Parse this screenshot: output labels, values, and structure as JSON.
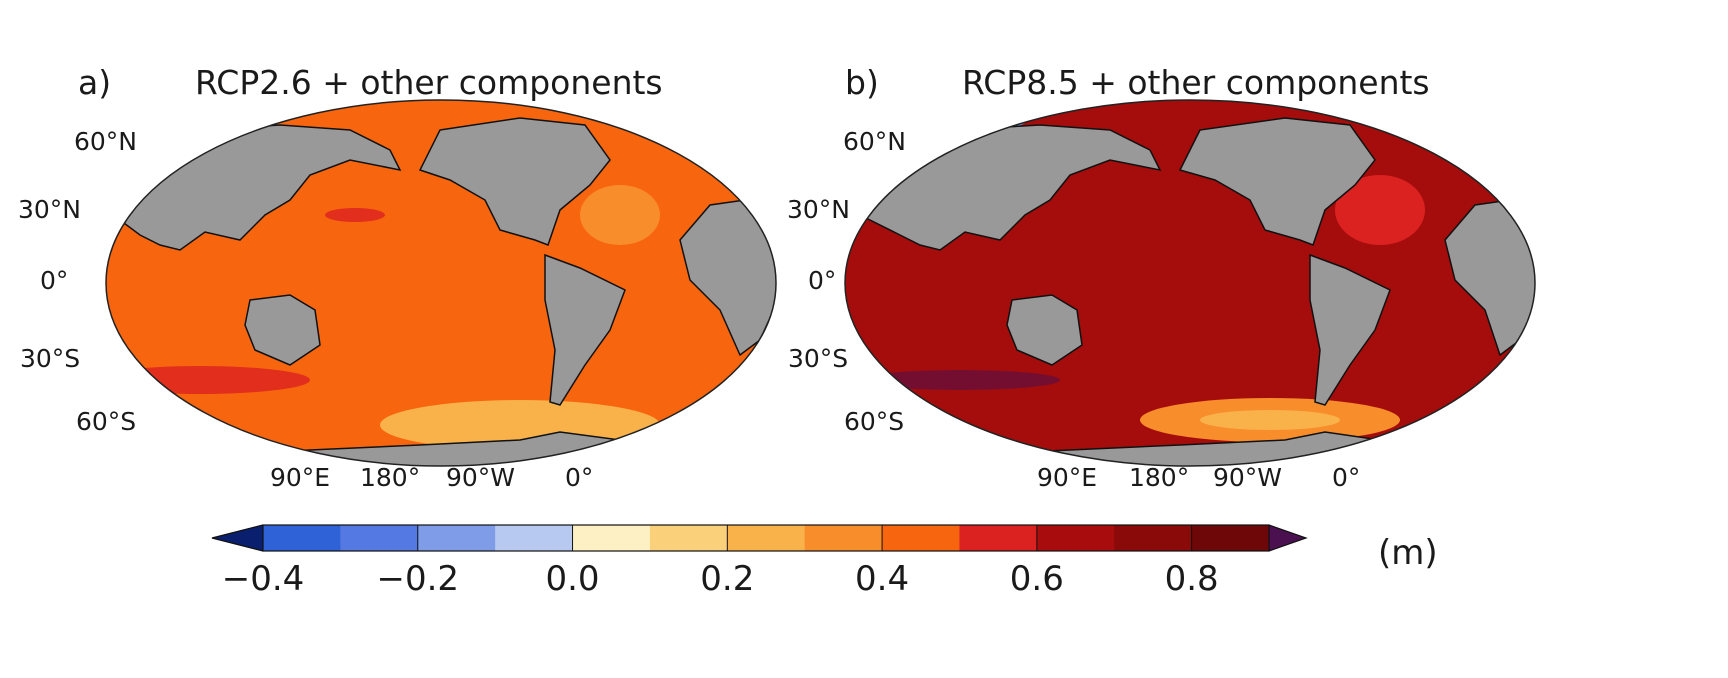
{
  "figure": {
    "panels": [
      {
        "id": "a",
        "letter": "a)",
        "title": "RCP2.6 + other components",
        "ocean_color": "#f7650f",
        "lat_labels": [
          "60°N",
          "30°N",
          "0°",
          "30°S",
          "60°S"
        ],
        "lon_labels": [
          "90°E",
          "180°",
          "90°W",
          "0°"
        ]
      },
      {
        "id": "b",
        "letter": "b)",
        "title": "RCP8.5 + other components",
        "ocean_color": "#a50c0c",
        "lat_labels": [
          "60°N",
          "30°N",
          "0°",
          "30°S",
          "60°S"
        ],
        "lon_labels": [
          "90°E",
          "180°",
          "90°W",
          "0°"
        ]
      }
    ],
    "land_color": "#999999"
  },
  "colorbar": {
    "unit": "(m)",
    "tick_labels": [
      "−0.4",
      "−0.2",
      "0.0",
      "0.2",
      "0.4",
      "0.6",
      "0.8"
    ],
    "tick_values": [
      -0.4,
      -0.2,
      0.0,
      0.2,
      0.4,
      0.6,
      0.8
    ],
    "min": -0.4,
    "max": 0.9,
    "step": 0.1,
    "under_color": "#0a1f6e",
    "over_color": "#4a1050",
    "colors": [
      "#2f62d6",
      "#5479e2",
      "#7e9ce8",
      "#b7c9f0",
      "#fdf0c4",
      "#fbd07a",
      "#f9b24a",
      "#f88d2c",
      "#f7650f",
      "#dc2121",
      "#a90c0c",
      "#8a0909",
      "#6e0808"
    ]
  }
}
